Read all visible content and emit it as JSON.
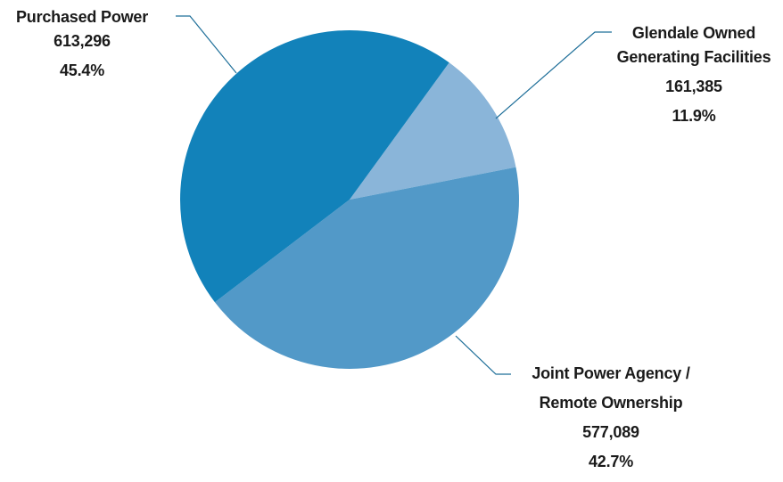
{
  "chart_data": {
    "type": "pie",
    "slices": [
      {
        "name_lines": [
          "Purchased Power"
        ],
        "value": "613,296",
        "percent": "45.4%",
        "number": 613296,
        "share": 45.4,
        "color": "#1282ba"
      },
      {
        "name_lines": [
          "Glendale Owned",
          "Generating Facilities"
        ],
        "value": "161,385",
        "percent": "11.9%",
        "number": 161385,
        "share": 11.9,
        "color": "#8ab5d9"
      },
      {
        "name_lines": [
          "Joint Power Agency /",
          "Remote Ownership"
        ],
        "value": "577,089",
        "percent": "42.7%",
        "number": 577089,
        "share": 42.7,
        "color": "#5299c8"
      }
    ],
    "leader_line_color": "#1f6f99"
  }
}
